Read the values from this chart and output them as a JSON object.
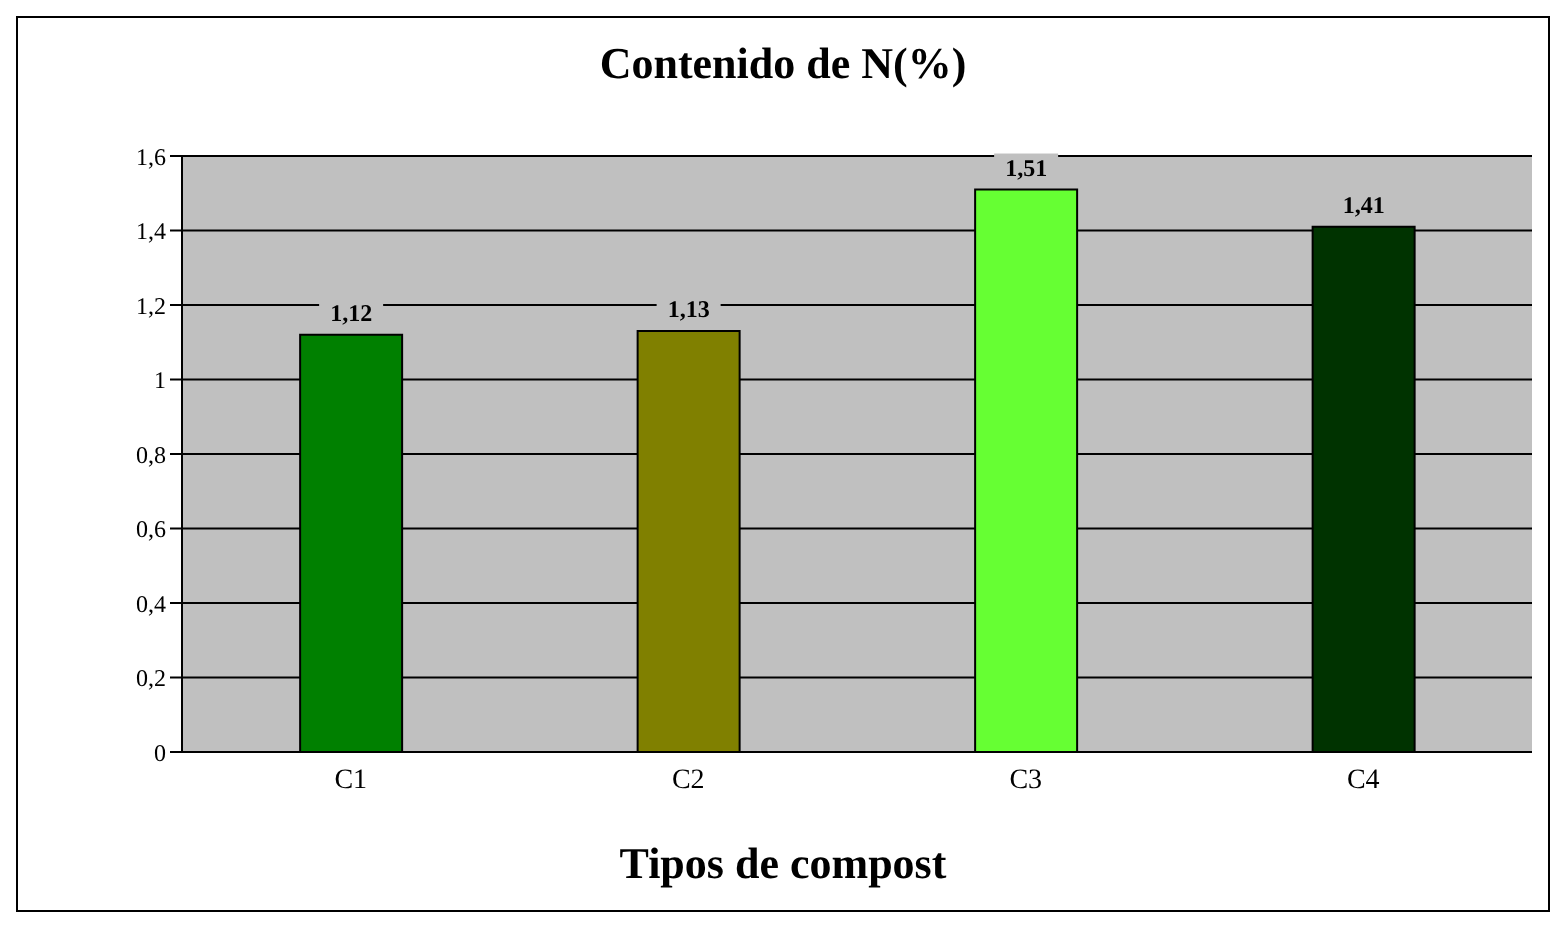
{
  "chart_data": {
    "type": "bar",
    "title": "Contenido de N(%)",
    "xlabel": "Tipos de compost",
    "categories": [
      "C1",
      "C2",
      "C3",
      "C4"
    ],
    "values": [
      1.12,
      1.13,
      1.51,
      1.41
    ],
    "colors": [
      "#008000",
      "#808000",
      "#66ff33",
      "#003300"
    ],
    "value_labels": [
      "1,12",
      "1,13",
      "1,51",
      "1,41"
    ],
    "ylim": [
      0,
      1.6
    ],
    "yticks": [
      0,
      {
        "value": 0.2,
        "label": "0,2"
      },
      {
        "value": 0.4,
        "label": "0,4"
      },
      {
        "value": 0.6,
        "label": "0,6"
      },
      {
        "value": 0.8,
        "label": "0,8"
      },
      1,
      {
        "value": 1.2,
        "label": "1,2"
      },
      {
        "value": 1.4,
        "label": "1,4"
      },
      {
        "value": 1.6,
        "label": "1,6"
      }
    ],
    "grid": "y",
    "legend": false
  }
}
